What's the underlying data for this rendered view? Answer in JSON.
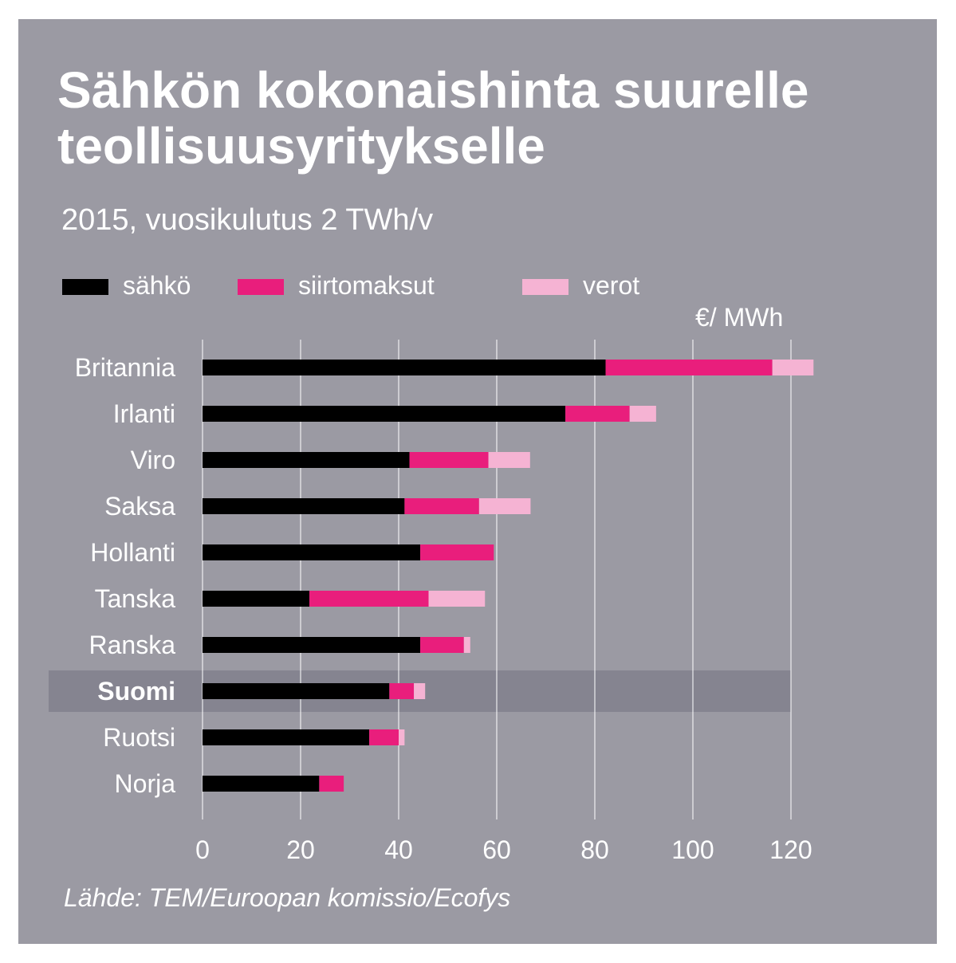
{
  "title": "Sähkön kokonaishinta suurelle teollisuusyritykselle",
  "subtitle": "2015, vuosikulutus 2 TWh/v",
  "unit_label": "€/ MWh",
  "source": "Lähde: TEM/Euroopan komissio/Ecofys",
  "colors": {
    "background": "#9b9aa3",
    "highlight": "#858490",
    "sahko": "#000000",
    "siirtomaksut": "#e91e7c",
    "verot": "#f5b3d3",
    "grid": "#ffffff",
    "text": "#ffffff"
  },
  "legend": [
    {
      "label": "sähkö",
      "color_key": "sahko"
    },
    {
      "label": "siirtomaksut",
      "color_key": "siirtomaksut"
    },
    {
      "label": "verot",
      "color_key": "verot"
    }
  ],
  "chart_data": {
    "type": "bar",
    "orientation": "horizontal",
    "stacked": true,
    "title": "Sähkön kokonaishinta suurelle teollisuusyritykselle",
    "subtitle": "2015, vuosikulutus 2 TWh/v",
    "xlabel": "€/ MWh",
    "ylabel": "",
    "xlim": [
      0,
      120
    ],
    "xticks": [
      0,
      20,
      40,
      60,
      80,
      100,
      120
    ],
    "grid": true,
    "legend_position": "top",
    "highlight": "Suomi",
    "categories": [
      "Britannia",
      "Irlanti",
      "Viro",
      "Saksa",
      "Hollanti",
      "Tanska",
      "Ranska",
      "Suomi",
      "Ruotsi",
      "Norja"
    ],
    "series": [
      {
        "name": "sähkö",
        "values": [
          82.2,
          74.0,
          42.2,
          41.2,
          44.4,
          21.8,
          44.4,
          38.1,
          34.0,
          23.8
        ]
      },
      {
        "name": "siirtomaksut",
        "values": [
          34.0,
          13.1,
          16.1,
          15.2,
          15.0,
          24.3,
          8.9,
          5.0,
          6.0,
          5.0
        ]
      },
      {
        "name": "verot",
        "values": [
          8.4,
          5.4,
          8.5,
          10.5,
          0,
          11.5,
          1.3,
          2.3,
          1.2,
          0
        ]
      }
    ]
  }
}
